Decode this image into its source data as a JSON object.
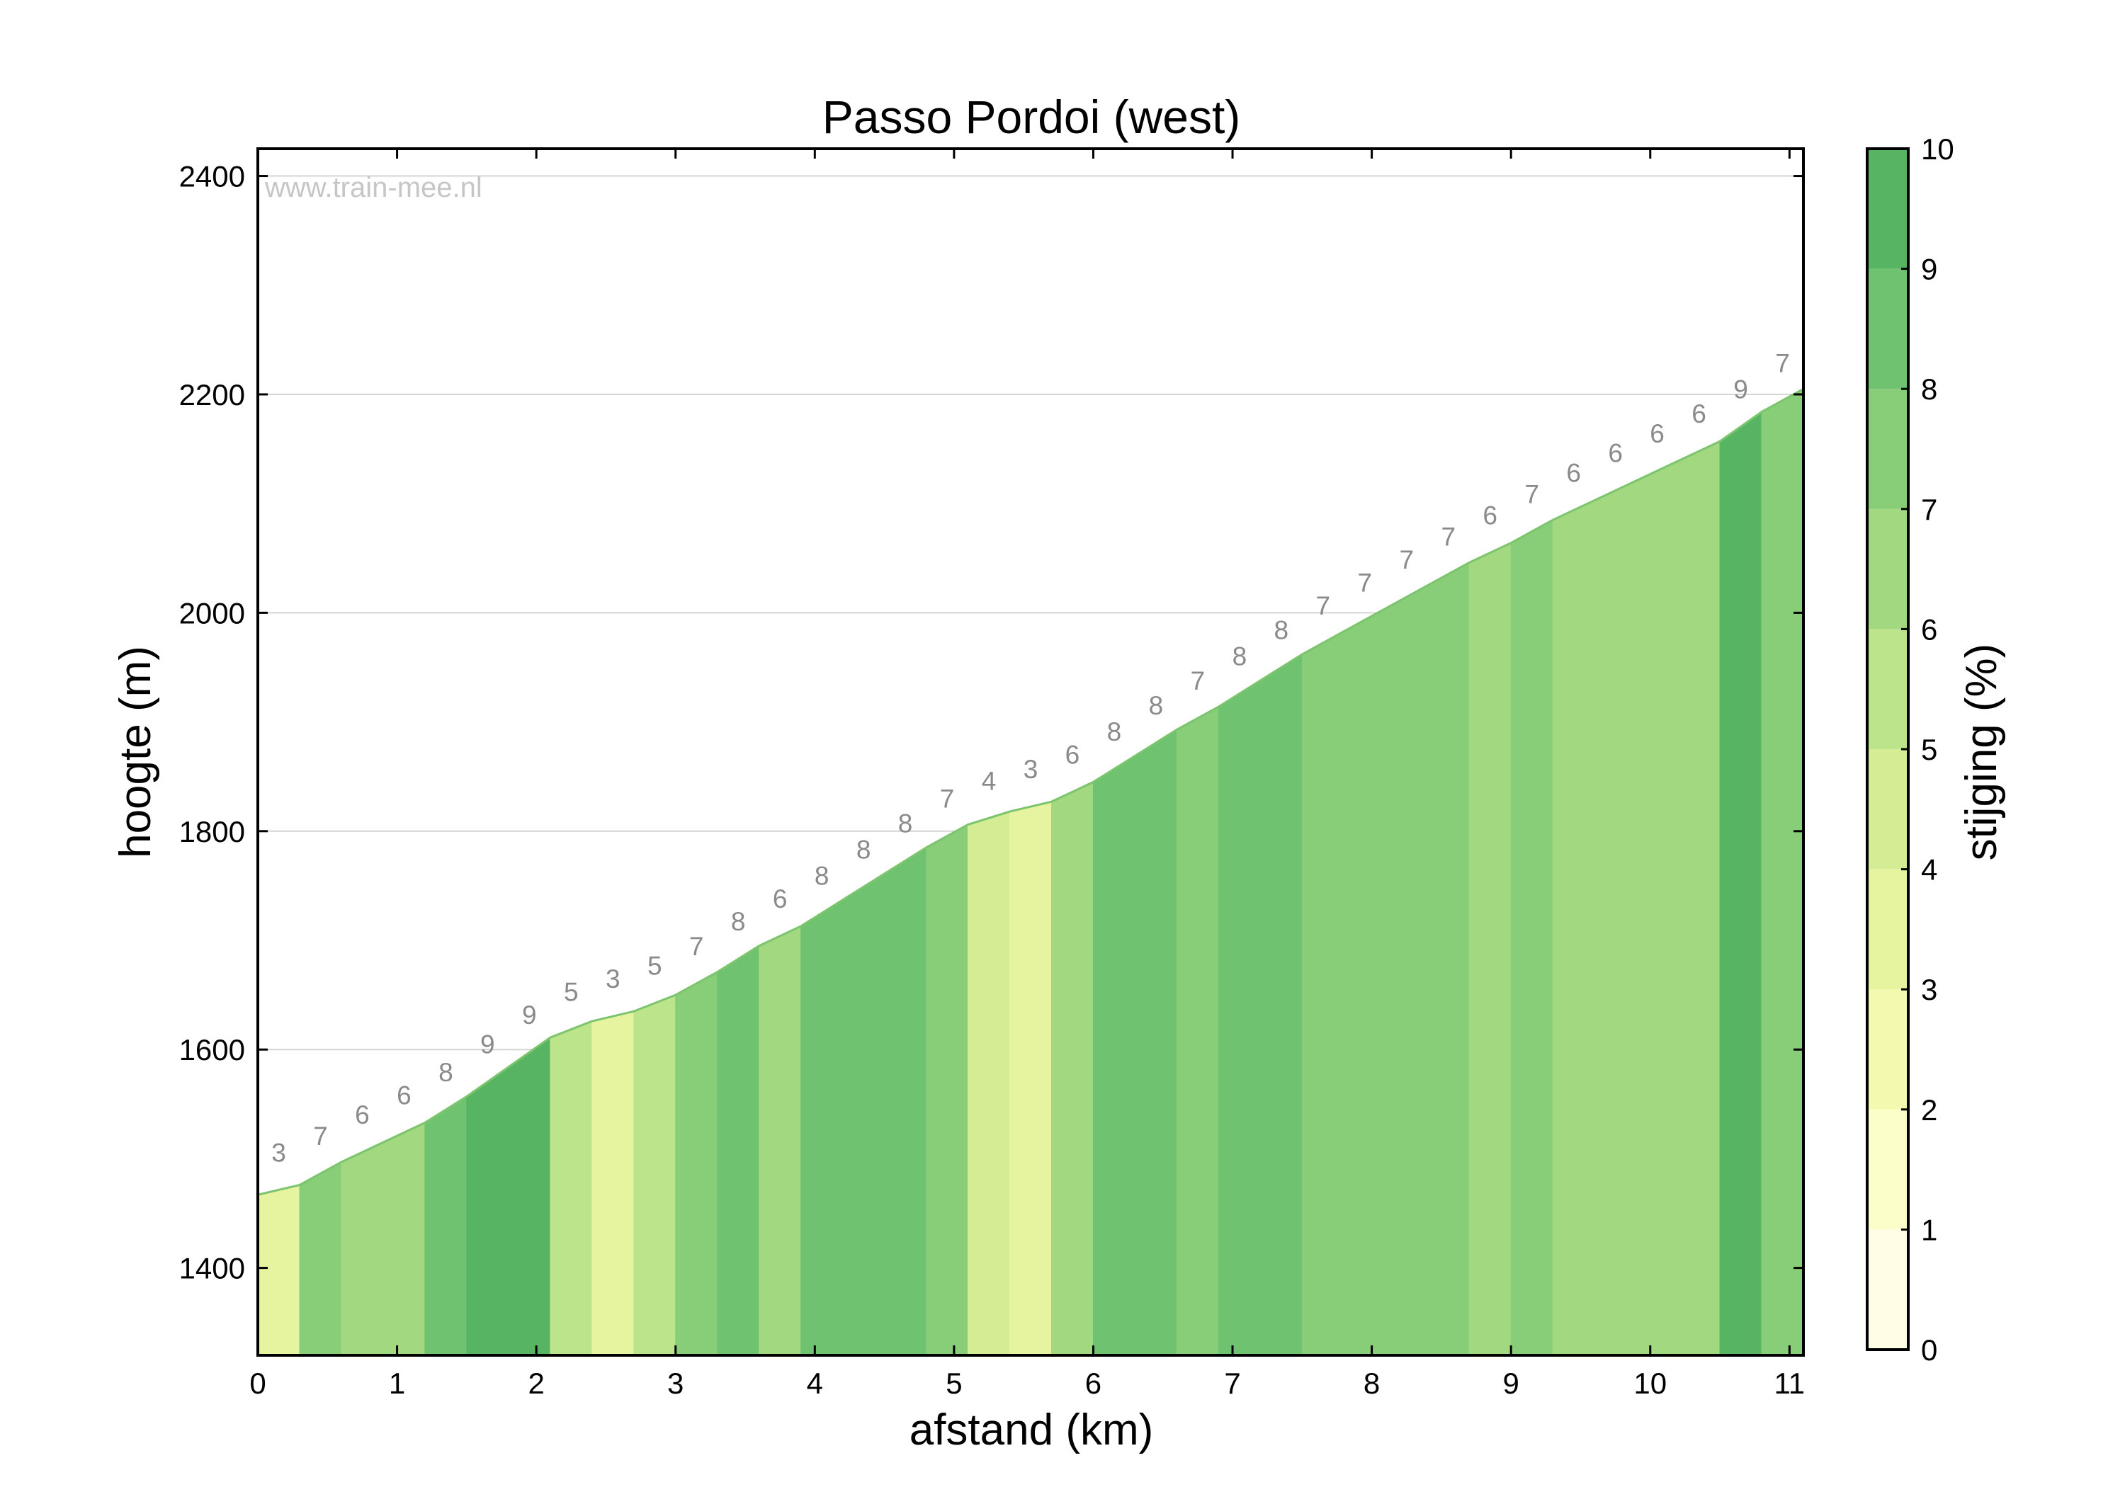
{
  "chart_data": {
    "type": "area",
    "title": "Passo Pordoi (west)",
    "xlabel": "afstand (km)",
    "ylabel": "hoogte (m)",
    "xlim": [
      0,
      11.1
    ],
    "ylim": [
      1320,
      2425
    ],
    "x_ticks": [
      0,
      1,
      2,
      3,
      4,
      5,
      6,
      7,
      8,
      9,
      10,
      11
    ],
    "y_ticks": [
      1400,
      1600,
      1800,
      2000,
      2200,
      2400
    ],
    "grid": "horizontal",
    "watermark": "www.train-mee.nl",
    "colorbar": {
      "label": "stijging (%)",
      "range": [
        0,
        10
      ],
      "ticks": [
        0,
        1,
        2,
        3,
        4,
        5,
        6,
        7,
        8,
        9,
        10
      ],
      "colors": [
        "#fffde6",
        "#fbfec8",
        "#f3fab0",
        "#e6f4a0",
        "#d4ed95",
        "#bce48a",
        "#a2d880",
        "#88cd78",
        "#6fc26f",
        "#56b462",
        "#3ea454"
      ]
    },
    "segments": [
      {
        "x0": 0.0,
        "x1": 0.3,
        "y0": 1467,
        "y1": 1476,
        "grade": 3
      },
      {
        "x0": 0.3,
        "x1": 0.6,
        "y0": 1476,
        "y1": 1497,
        "grade": 7
      },
      {
        "x0": 0.6,
        "x1": 0.9,
        "y0": 1497,
        "y1": 1515,
        "grade": 6
      },
      {
        "x0": 0.9,
        "x1": 1.2,
        "y0": 1515,
        "y1": 1533,
        "grade": 6
      },
      {
        "x0": 1.2,
        "x1": 1.5,
        "y0": 1533,
        "y1": 1557,
        "grade": 8
      },
      {
        "x0": 1.5,
        "x1": 1.8,
        "y0": 1557,
        "y1": 1584,
        "grade": 9
      },
      {
        "x0": 1.8,
        "x1": 2.1,
        "y0": 1584,
        "y1": 1611,
        "grade": 9
      },
      {
        "x0": 2.1,
        "x1": 2.4,
        "y0": 1611,
        "y1": 1626,
        "grade": 5
      },
      {
        "x0": 2.4,
        "x1": 2.7,
        "y0": 1626,
        "y1": 1635,
        "grade": 3
      },
      {
        "x0": 2.7,
        "x1": 3.0,
        "y0": 1635,
        "y1": 1650,
        "grade": 5
      },
      {
        "x0": 3.0,
        "x1": 3.3,
        "y0": 1650,
        "y1": 1671,
        "grade": 7
      },
      {
        "x0": 3.3,
        "x1": 3.6,
        "y0": 1671,
        "y1": 1695,
        "grade": 8
      },
      {
        "x0": 3.6,
        "x1": 3.9,
        "y0": 1695,
        "y1": 1713,
        "grade": 6
      },
      {
        "x0": 3.9,
        "x1": 4.2,
        "y0": 1713,
        "y1": 1737,
        "grade": 8
      },
      {
        "x0": 4.2,
        "x1": 4.5,
        "y0": 1737,
        "y1": 1761,
        "grade": 8
      },
      {
        "x0": 4.5,
        "x1": 4.8,
        "y0": 1761,
        "y1": 1785,
        "grade": 8
      },
      {
        "x0": 4.8,
        "x1": 5.1,
        "y0": 1785,
        "y1": 1806,
        "grade": 7
      },
      {
        "x0": 5.1,
        "x1": 5.4,
        "y0": 1806,
        "y1": 1818,
        "grade": 4
      },
      {
        "x0": 5.4,
        "x1": 5.7,
        "y0": 1818,
        "y1": 1827,
        "grade": 3
      },
      {
        "x0": 5.7,
        "x1": 6.0,
        "y0": 1827,
        "y1": 1845,
        "grade": 6
      },
      {
        "x0": 6.0,
        "x1": 6.3,
        "y0": 1845,
        "y1": 1869,
        "grade": 8
      },
      {
        "x0": 6.3,
        "x1": 6.6,
        "y0": 1869,
        "y1": 1893,
        "grade": 8
      },
      {
        "x0": 6.6,
        "x1": 6.9,
        "y0": 1893,
        "y1": 1914,
        "grade": 7
      },
      {
        "x0": 6.9,
        "x1": 7.2,
        "y0": 1914,
        "y1": 1938,
        "grade": 8
      },
      {
        "x0": 7.2,
        "x1": 7.5,
        "y0": 1938,
        "y1": 1962,
        "grade": 8
      },
      {
        "x0": 7.5,
        "x1": 7.8,
        "y0": 1962,
        "y1": 1983,
        "grade": 7
      },
      {
        "x0": 7.8,
        "x1": 8.1,
        "y0": 1983,
        "y1": 2004,
        "grade": 7
      },
      {
        "x0": 8.1,
        "x1": 8.4,
        "y0": 2004,
        "y1": 2025,
        "grade": 7
      },
      {
        "x0": 8.4,
        "x1": 8.7,
        "y0": 2025,
        "y1": 2046,
        "grade": 7
      },
      {
        "x0": 8.7,
        "x1": 9.0,
        "y0": 2046,
        "y1": 2064,
        "grade": 6
      },
      {
        "x0": 9.0,
        "x1": 9.3,
        "y0": 2064,
        "y1": 2085,
        "grade": 7
      },
      {
        "x0": 9.3,
        "x1": 9.6,
        "y0": 2085,
        "y1": 2103,
        "grade": 6
      },
      {
        "x0": 9.6,
        "x1": 9.9,
        "y0": 2103,
        "y1": 2121,
        "grade": 6
      },
      {
        "x0": 9.9,
        "x1": 10.2,
        "y0": 2121,
        "y1": 2139,
        "grade": 6
      },
      {
        "x0": 10.2,
        "x1": 10.5,
        "y0": 2139,
        "y1": 2157,
        "grade": 6
      },
      {
        "x0": 10.5,
        "x1": 10.8,
        "y0": 2157,
        "y1": 2184,
        "grade": 9
      },
      {
        "x0": 10.8,
        "x1": 11.1,
        "y0": 2184,
        "y1": 2205,
        "grade": 7
      }
    ]
  }
}
